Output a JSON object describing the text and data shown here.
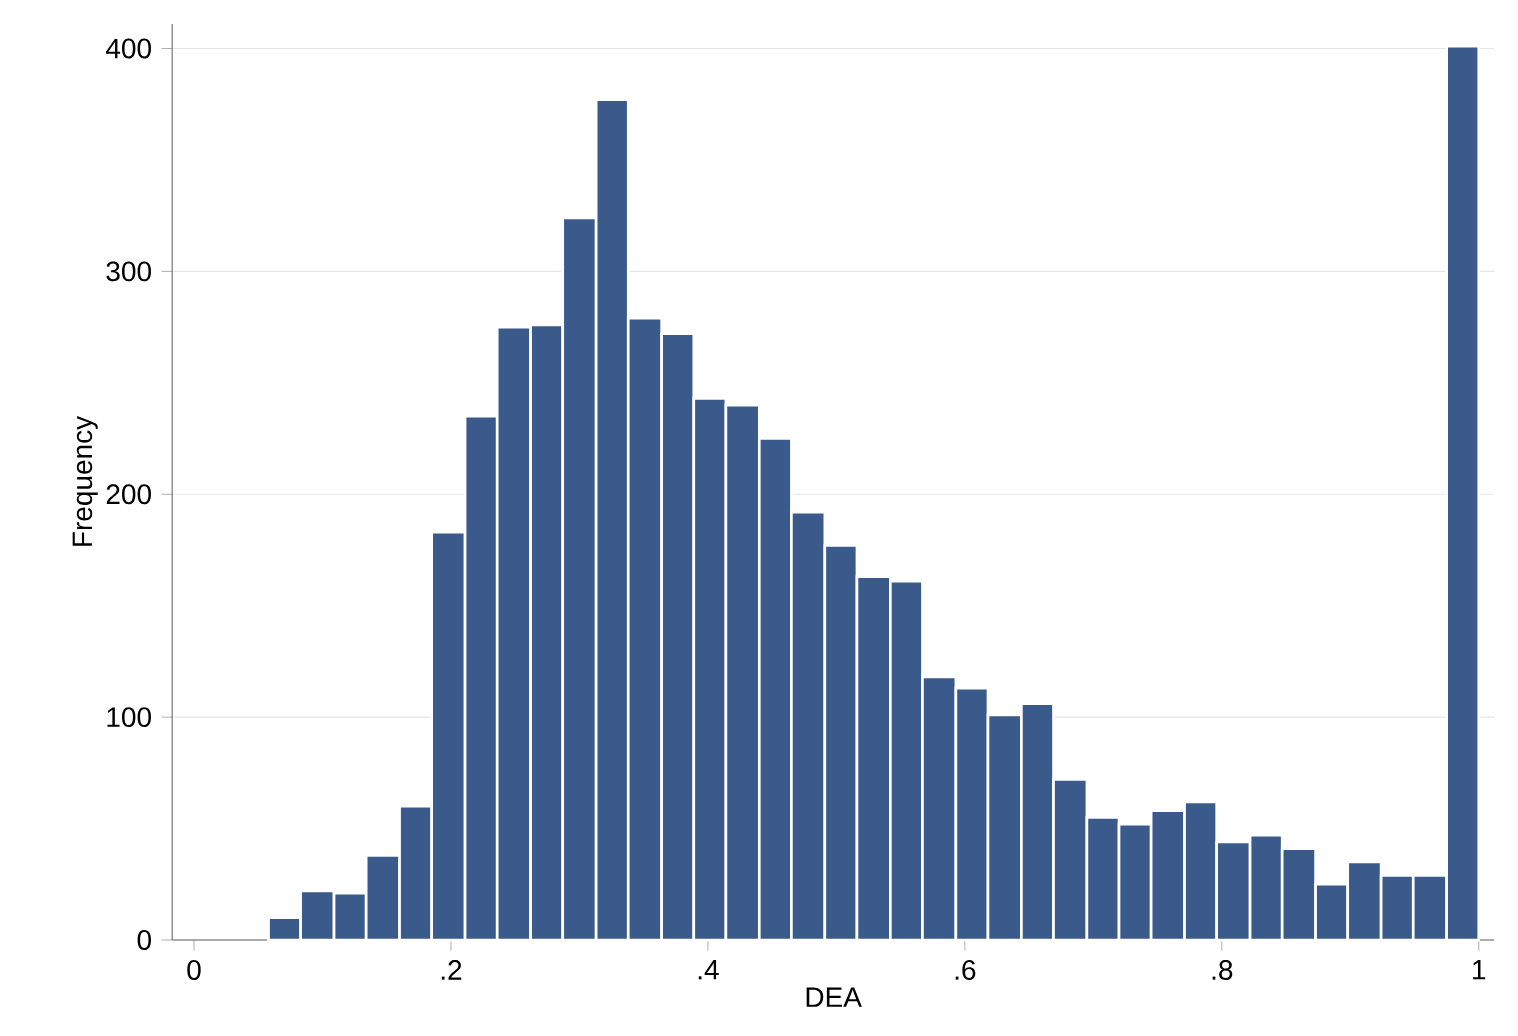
{
  "chart_data": {
    "type": "histogram",
    "xlabel": "DEA",
    "ylabel": "Frequency",
    "color": "#3a5a8c",
    "bins": [
      0.058,
      0.083,
      0.109,
      0.134,
      0.16,
      0.185,
      0.211,
      0.236,
      0.262,
      0.287,
      0.313,
      0.338,
      0.364,
      0.389,
      0.414,
      0.44,
      0.465,
      0.491,
      0.516,
      0.542,
      0.567,
      0.593,
      0.618,
      0.644,
      0.669,
      0.695,
      0.72,
      0.745,
      0.771,
      0.796,
      0.822,
      0.847,
      0.873,
      0.898,
      0.924,
      0.949,
      0.975,
      1.0
    ],
    "values": [
      10,
      22,
      21,
      38,
      60,
      183,
      235,
      275,
      276,
      324,
      377,
      279,
      272,
      243,
      240,
      225,
      192,
      177,
      163,
      161,
      118,
      113,
      101,
      106,
      72,
      55,
      52,
      58,
      62,
      44,
      47,
      41,
      25,
      35,
      29,
      29,
      401
    ],
    "xlim": [
      -0.017,
      1.012
    ],
    "ylim": [
      0,
      411
    ],
    "xticks": [
      0,
      {
        "value": 0.2,
        "label": ".2"
      },
      {
        "value": 0.4,
        "label": ".4"
      },
      {
        "value": 0.6,
        "label": ".6"
      },
      {
        "value": 0.8,
        "label": ".8"
      },
      1
    ],
    "yticks": [
      0,
      100,
      200,
      300,
      400
    ],
    "grid": "y"
  }
}
